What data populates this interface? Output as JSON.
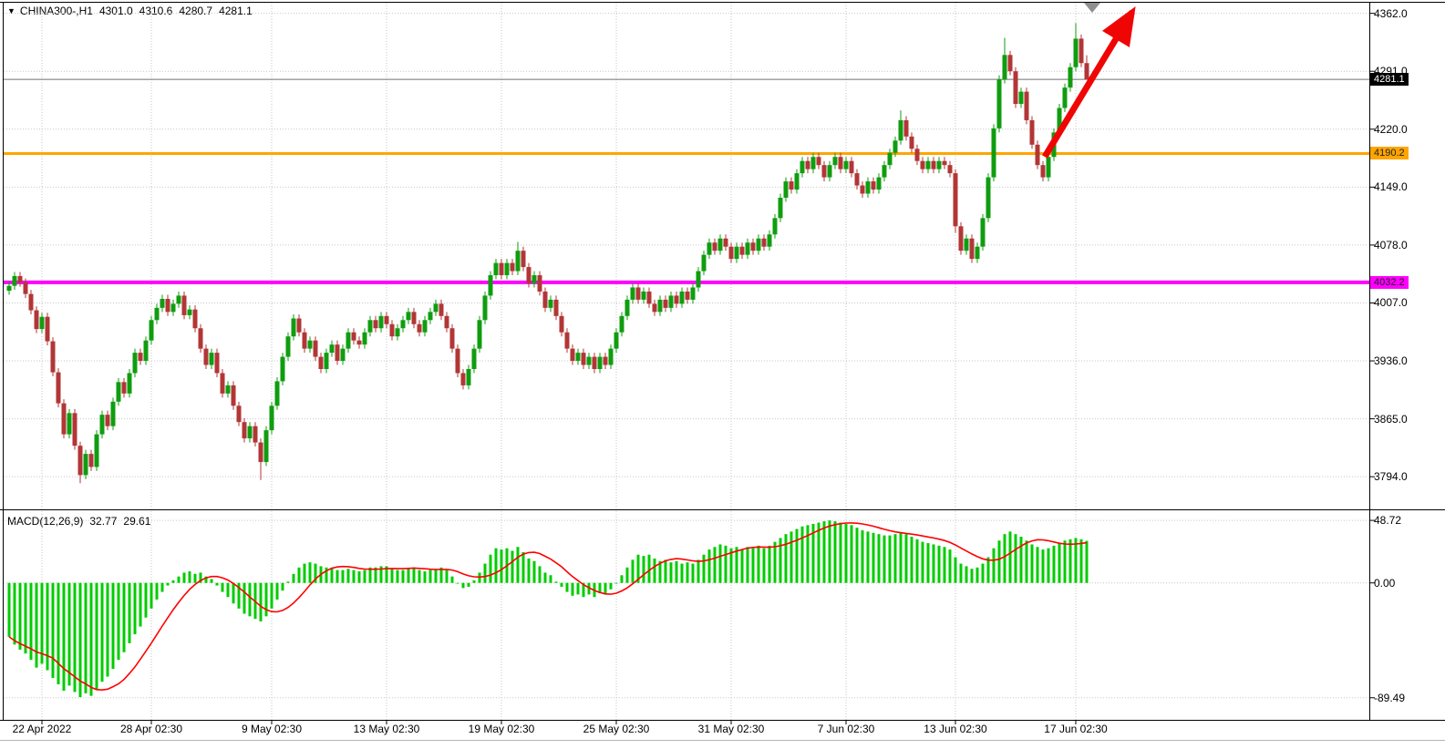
{
  "colors": {
    "bull": "#0f9d0f",
    "bear": "#b23636",
    "macd_hist": "#00cc00",
    "macd_signal": "#ff0000",
    "grid": "#c6c6c6",
    "price_line": "#707070",
    "border": "#000000",
    "window_edge": "#b5b5b5"
  },
  "header": {
    "collapse_icon": "▼",
    "symbol": "CHINA300-,H1",
    "open": "4301.0",
    "high": "4310.6",
    "low": "4280.7",
    "close": "4281.1"
  },
  "chart_data": {
    "type": "candlestick",
    "symbol": "CHINA300-",
    "timeframe": "H1",
    "ohlc_current": {
      "open": 4301.0,
      "high": 4310.6,
      "low": 4280.7,
      "close": 4281.1
    },
    "ylim": [
      3754,
      4375
    ],
    "price_gridlines": [
      4362.0,
      4291.0,
      4220.0,
      4149.0,
      4078.0,
      4007.0,
      3936.0,
      3865.0,
      3794.0
    ],
    "price_badges": [
      {
        "value": 4281.1,
        "bg": "#000000",
        "fg": "#ffffff",
        "name": "current-price-badge"
      },
      {
        "value": 4190.2,
        "bg": "#ffa500",
        "fg": "#222222",
        "name": "resistance-price-badge"
      },
      {
        "value": 4032.2,
        "bg": "#ff00ff",
        "fg": "#222222",
        "name": "support-price-badge"
      }
    ],
    "time_labels": [
      [
        "22 Apr 2022",
        6
      ],
      [
        "28 Apr 02:30",
        26
      ],
      [
        "9 May 02:30",
        48
      ],
      [
        "13 May 02:30",
        69
      ],
      [
        "19 May 02:30",
        90
      ],
      [
        "25 May 02:30",
        111
      ],
      [
        "31 May 02:30",
        132
      ],
      [
        "7 Jun 02:30",
        153
      ],
      [
        "13 Jun 02:30",
        173
      ],
      [
        "17 Jun 02:30",
        195
      ]
    ],
    "first_open": 4022,
    "default_wick": 5,
    "closes": [
      4028,
      4040,
      4032,
      4018,
      3998,
      3975,
      3990,
      3960,
      3922,
      3884,
      3846,
      3872,
      3832,
      3796,
      3822,
      3806,
      3846,
      3870,
      3856,
      3886,
      3910,
      3896,
      3921,
      3946,
      3936,
      3961,
      3986,
      4001,
      4012,
      3996,
      4006,
      4016,
      3992,
      3999,
      3976,
      3951,
      3931,
      3946,
      3921,
      3896,
      3906,
      3881,
      3861,
      3841,
      3856,
      3836,
      3812,
      3851,
      3881,
      3911,
      3941,
      3966,
      3988,
      3971,
      3951,
      3961,
      3941,
      3926,
      3946,
      3956,
      3936,
      3951,
      3971,
      3961,
      3956,
      3971,
      3986,
      3976,
      3991,
      3981,
      3966,
      3976,
      3986,
      3996,
      3981,
      3971,
      3986,
      3996,
      4006,
      3991,
      3976,
      3951,
      3921,
      3906,
      3926,
      3951,
      3986,
      4016,
      4041,
      4056,
      4041,
      4056,
      4046,
      4071,
      4051,
      4031,
      4041,
      4021,
      4001,
      4011,
      3991,
      3971,
      3951,
      3936,
      3946,
      3931,
      3941,
      3926,
      3941,
      3931,
      3951,
      3971,
      3991,
      4011,
      4026,
      4011,
      4021,
      4006,
      3996,
      4011,
      4001,
      4016,
      4006,
      4021,
      4011,
      4026,
      4046,
      4066,
      4081,
      4071,
      4086,
      4076,
      4061,
      4076,
      4066,
      4081,
      4071,
      4086,
      4076,
      4091,
      4111,
      4136,
      4156,
      4146,
      4166,
      4181,
      4171,
      4186,
      4176,
      4161,
      4176,
      4186,
      4171,
      4181,
      4166,
      4151,
      4141,
      4156,
      4146,
      4161,
      4176,
      4191,
      4206,
      4231,
      4211,
      4196,
      4181,
      4171,
      4181,
      4171,
      4181,
      4176,
      4166,
      4101,
      4071,
      4086,
      4061,
      4076,
      4111,
      4161,
      4221,
      4281,
      4311,
      4291,
      4251,
      4266,
      4231,
      4201,
      4176,
      4161,
      4186,
      4216,
      4246,
      4271,
      4296,
      4331,
      4301,
      4281.1
    ],
    "wick_overrides": [
      {
        "i": 13,
        "low": 3786
      },
      {
        "i": 46,
        "low": 3790
      },
      {
        "i": 93,
        "high": 4082
      },
      {
        "i": 163,
        "high": 4243
      },
      {
        "i": 173,
        "low": 4093
      },
      {
        "i": 182,
        "high": 4332
      },
      {
        "i": 195,
        "high": 4350
      },
      {
        "i": 197,
        "high": 4310.6,
        "low": 4280.7
      }
    ],
    "hlines": [
      {
        "value": 4190.2,
        "color": "#ffa500",
        "width": 3
      },
      {
        "value": 4032.2,
        "color": "#ff00ff",
        "width": 4
      }
    ],
    "current_price_line": 4281.1,
    "trend_arrow": {
      "from": [
        1146,
        172
      ],
      "to": [
        1242,
        13
      ],
      "color": "#f00505",
      "width": 7
    },
    "anchor_triangle": "1189,3 1207,3 1198,14",
    "macd": {
      "title": "MACD(12,26,9)",
      "value": "32.77",
      "signal_value": "29.61",
      "signal_period": 9,
      "axis_values": [
        48.72,
        0,
        -89.49
      ],
      "axis_labels": [
        "48.72",
        "0.00",
        "-89.49"
      ],
      "ylim": [
        -106.7,
        56.6
      ],
      "histogram": [
        -42,
        -48,
        -52,
        -55,
        -60,
        -66,
        -63,
        -68,
        -74,
        -79,
        -84,
        -80,
        -85,
        -89,
        -86,
        -88,
        -83,
        -77,
        -73,
        -67,
        -60,
        -54,
        -47,
        -40,
        -34,
        -27,
        -20,
        -13,
        -7,
        -2,
        2,
        5,
        8,
        9,
        7,
        8,
        5,
        3,
        -2,
        -7,
        -11,
        -16,
        -20,
        -24,
        -26,
        -28,
        -30,
        -26,
        -20,
        -13,
        -6,
        1,
        7,
        12,
        15,
        16,
        15,
        13,
        12,
        12,
        10,
        10,
        11,
        10,
        9,
        10,
        12,
        12,
        13,
        13,
        11,
        10,
        10,
        11,
        12,
        10,
        9,
        10,
        11,
        12,
        10,
        5,
        0,
        -4,
        -3,
        2,
        8,
        15,
        22,
        27,
        26,
        27,
        25,
        28,
        24,
        19,
        17,
        13,
        8,
        6,
        1,
        -3,
        -7,
        -10,
        -9,
        -11,
        -9,
        -11,
        -8,
        -9,
        -5,
        0,
        6,
        12,
        18,
        22,
        21,
        22,
        19,
        17,
        18,
        16,
        17,
        15,
        16,
        15,
        18,
        22,
        26,
        28,
        30,
        29,
        27,
        28,
        26,
        28,
        27,
        29,
        27,
        29,
        32,
        35,
        38,
        40,
        42,
        44,
        45,
        46,
        47,
        48,
        48.7,
        48,
        47,
        46,
        45,
        43,
        41,
        40,
        39,
        38,
        37,
        37,
        38,
        39,
        38,
        36,
        34,
        32,
        31,
        30,
        29,
        28,
        26,
        20,
        15,
        13,
        11,
        12,
        15,
        20,
        27,
        33,
        38,
        40,
        38,
        36,
        33,
        30,
        28,
        26,
        27,
        29,
        31,
        33,
        34,
        35,
        34,
        32.77
      ]
    }
  }
}
